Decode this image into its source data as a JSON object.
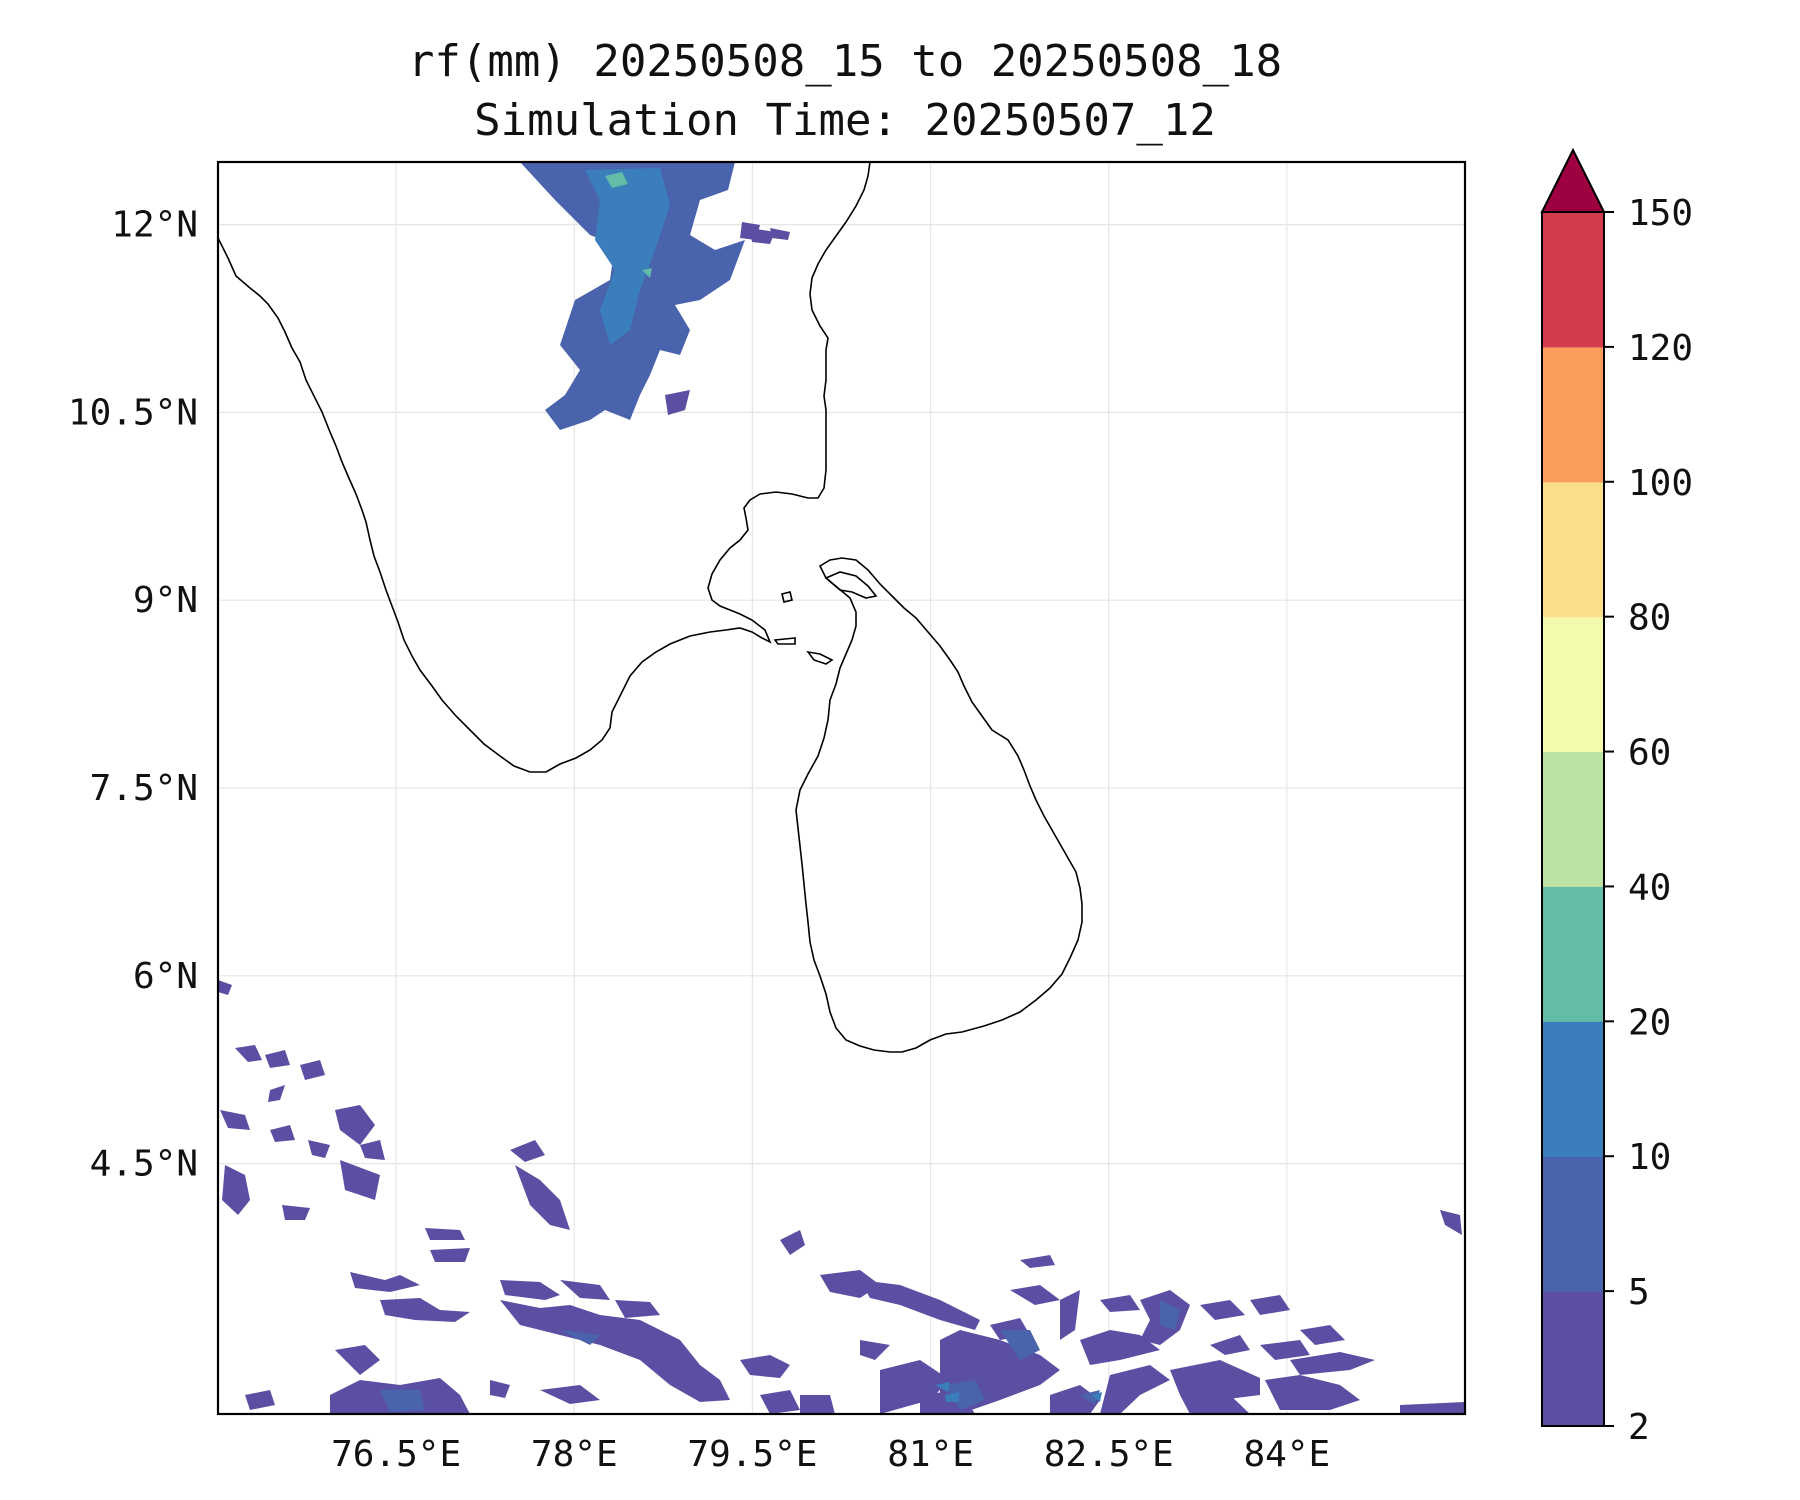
{
  "title": "rf(mm) 20250508_15 to 20250508_18",
  "subtitle": "Simulation Time: 20250507_12",
  "map": {
    "lon_range": [
      75.0,
      85.5
    ],
    "lat_range": [
      2.5,
      12.5
    ],
    "lat_ticks": [
      {
        "value": 12.0,
        "label": "12°N"
      },
      {
        "value": 10.5,
        "label": "10.5°N"
      },
      {
        "value": 9.0,
        "label": "9°N"
      },
      {
        "value": 7.5,
        "label": "7.5°N"
      },
      {
        "value": 6.0,
        "label": "6°N"
      },
      {
        "value": 4.5,
        "label": "4.5°N"
      }
    ],
    "lon_ticks": [
      {
        "value": 76.5,
        "label": "76.5°E"
      },
      {
        "value": 78.0,
        "label": "78°E"
      },
      {
        "value": 79.5,
        "label": "79.5°E"
      },
      {
        "value": 81.0,
        "label": "81°E"
      },
      {
        "value": 82.5,
        "label": "82.5°E"
      },
      {
        "value": 84.0,
        "label": "84°E"
      }
    ],
    "gridlines": true
  },
  "colorbar": {
    "extend": "max",
    "levels": [
      {
        "label": "2",
        "value": 2
      },
      {
        "label": "5",
        "value": 5
      },
      {
        "label": "10",
        "value": 10
      },
      {
        "label": "20",
        "value": 20
      },
      {
        "label": "40",
        "value": 40
      },
      {
        "label": "60",
        "value": 60
      },
      {
        "label": "80",
        "value": 80
      },
      {
        "label": "100",
        "value": 100
      },
      {
        "label": "120",
        "value": 120
      },
      {
        "label": "150",
        "value": 150
      }
    ],
    "colors": [
      "#5a4fa2",
      "#4a63ad",
      "#3a7fbb",
      "#62bca8",
      "#bde3a2",
      "#f3faac",
      "#fbde8b",
      "#f99d5b",
      "#d33c4e"
    ],
    "over_color": "#9e0142"
  }
}
